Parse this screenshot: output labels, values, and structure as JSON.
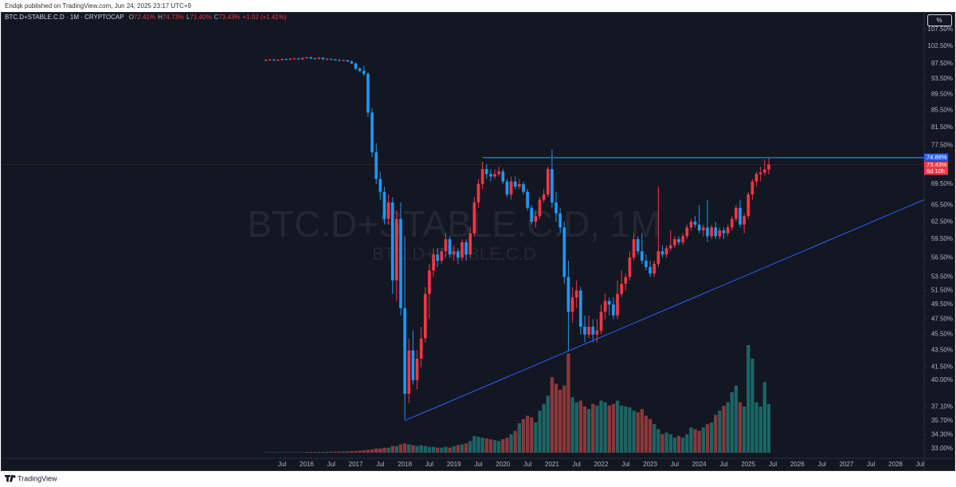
{
  "header": {
    "text": "Endqk published on TradingView.com, Jun 24, 2025 23:17 UTC+9"
  },
  "footer": {
    "brand": "TradingView"
  },
  "scale_button": "%",
  "chart_data": {
    "type": "candlestick",
    "symbol": "BTC.D+STABLE.C.D · 1M · CRYPTOCAP",
    "legend": [
      {
        "key": "O",
        "label": "72.41%"
      },
      {
        "key": "H",
        "label": "74.73%"
      },
      {
        "key": "L",
        "label": "71.40%"
      },
      {
        "key": "C",
        "label": "73.43%"
      }
    ],
    "change": "+1.02 (+1.41%)",
    "watermark": [
      "BTC.D+STABLE.C.D, 1M",
      "BTC.D+STABLE.C.D"
    ],
    "x": [
      "2015-03",
      "2015-04",
      "2015-05",
      "2015-06",
      "2015-07",
      "2015-08",
      "2015-09",
      "2015-10",
      "2015-11",
      "2015-12",
      "2016-01",
      "2016-02",
      "2016-03",
      "2016-04",
      "2016-05",
      "2016-06",
      "2016-07",
      "2016-08",
      "2016-09",
      "2016-10",
      "2016-11",
      "2016-12",
      "2017-01",
      "2017-02",
      "2017-03",
      "2017-04",
      "2017-05",
      "2017-06",
      "2017-07",
      "2017-08",
      "2017-09",
      "2017-10",
      "2017-11",
      "2017-12",
      "2018-01",
      "2018-02",
      "2018-03",
      "2018-04",
      "2018-05",
      "2018-06",
      "2018-07",
      "2018-08",
      "2018-09",
      "2018-10",
      "2018-11",
      "2018-12",
      "2019-01",
      "2019-02",
      "2019-03",
      "2019-04",
      "2019-05",
      "2019-06",
      "2019-07",
      "2019-08",
      "2019-09",
      "2019-10",
      "2019-11",
      "2019-12",
      "2020-01",
      "2020-02",
      "2020-03",
      "2020-04",
      "2020-05",
      "2020-06",
      "2020-07",
      "2020-08",
      "2020-09",
      "2020-10",
      "2020-11",
      "2020-12",
      "2021-01",
      "2021-02",
      "2021-03",
      "2021-04",
      "2021-05",
      "2021-06",
      "2021-07",
      "2021-08",
      "2021-09",
      "2021-10",
      "2021-11",
      "2021-12",
      "2022-01",
      "2022-02",
      "2022-03",
      "2022-04",
      "2022-05",
      "2022-06",
      "2022-07",
      "2022-08",
      "2022-09",
      "2022-10",
      "2022-11",
      "2022-12",
      "2023-01",
      "2023-02",
      "2023-03",
      "2023-04",
      "2023-05",
      "2023-06",
      "2023-07",
      "2023-08",
      "2023-09",
      "2023-10",
      "2023-11",
      "2023-12",
      "2024-01",
      "2024-02",
      "2024-03",
      "2024-04",
      "2024-05",
      "2024-06",
      "2024-07",
      "2024-08",
      "2024-09",
      "2024-10",
      "2024-11",
      "2024-12",
      "2025-01",
      "2025-02",
      "2025-03",
      "2025-04",
      "2025-05",
      "2025-06"
    ],
    "ohlc": [
      [
        98.4,
        98.8,
        98.2,
        98.6
      ],
      [
        98.6,
        98.9,
        98.4,
        98.7
      ],
      [
        98.7,
        98.9,
        98.3,
        98.5
      ],
      [
        98.5,
        98.8,
        98.3,
        98.6
      ],
      [
        98.6,
        99.0,
        98.4,
        98.8
      ],
      [
        98.8,
        99.0,
        98.5,
        98.7
      ],
      [
        98.7,
        99.1,
        98.5,
        98.9
      ],
      [
        98.9,
        99.2,
        98.7,
        99.0
      ],
      [
        99.0,
        99.2,
        98.6,
        98.8
      ],
      [
        98.8,
        99.3,
        98.6,
        99.1
      ],
      [
        99.1,
        99.5,
        98.9,
        99.3
      ],
      [
        99.3,
        99.5,
        98.8,
        99.0
      ],
      [
        99.0,
        99.2,
        98.7,
        98.9
      ],
      [
        98.9,
        99.4,
        98.7,
        99.2
      ],
      [
        99.2,
        99.3,
        98.6,
        98.8
      ],
      [
        98.8,
        99.1,
        98.5,
        98.9
      ],
      [
        98.9,
        99.0,
        98.5,
        98.7
      ],
      [
        98.7,
        98.9,
        98.4,
        98.6
      ],
      [
        98.6,
        98.8,
        98.2,
        98.4
      ],
      [
        98.4,
        98.7,
        98.2,
        98.5
      ],
      [
        98.5,
        98.6,
        98.0,
        98.2
      ],
      [
        98.2,
        98.4,
        97.4,
        97.6
      ],
      [
        97.6,
        97.9,
        95.8,
        96.2
      ],
      [
        96.2,
        96.6,
        95.2,
        95.6
      ],
      [
        95.6,
        97.0,
        94.2,
        94.8
      ],
      [
        94.8,
        95.2,
        84.0,
        85.0
      ],
      [
        85.0,
        86.0,
        75.0,
        76.0
      ],
      [
        76.0,
        78.0,
        69.5,
        70.5
      ],
      [
        70.5,
        72.0,
        66.5,
        68.0
      ],
      [
        68.0,
        69.0,
        62.0,
        63.0
      ],
      [
        63.0,
        67.5,
        62.0,
        66.0
      ],
      [
        66.0,
        67.0,
        51.0,
        53.0
      ],
      [
        53.0,
        64.5,
        50.0,
        63.0
      ],
      [
        63.0,
        66.0,
        48.0,
        49.0
      ],
      [
        49.0,
        60.0,
        35.8,
        38.5
      ],
      [
        38.5,
        45.0,
        37.5,
        43.5
      ],
      [
        43.5,
        46.0,
        39.5,
        40.0
      ],
      [
        40.0,
        43.5,
        39.0,
        42.5
      ],
      [
        42.5,
        46.5,
        41.5,
        45.0
      ],
      [
        45.0,
        52.0,
        44.5,
        51.0
      ],
      [
        51.0,
        55.5,
        47.5,
        54.5
      ],
      [
        54.5,
        58.0,
        53.5,
        57.0
      ],
      [
        57.0,
        58.0,
        55.0,
        56.0
      ],
      [
        56.0,
        58.0,
        55.5,
        57.5
      ],
      [
        57.5,
        60.5,
        56.5,
        59.5
      ],
      [
        59.5,
        60.0,
        56.5,
        57.0
      ],
      [
        57.0,
        58.5,
        56.0,
        57.5
      ],
      [
        57.5,
        58.0,
        55.5,
        56.5
      ],
      [
        56.5,
        59.5,
        56.0,
        59.0
      ],
      [
        59.0,
        59.5,
        56.0,
        57.0
      ],
      [
        57.0,
        61.5,
        56.5,
        60.5
      ],
      [
        60.5,
        67.0,
        60.0,
        66.0
      ],
      [
        66.0,
        70.5,
        65.0,
        69.5
      ],
      [
        69.5,
        74.0,
        68.5,
        72.5
      ],
      [
        72.5,
        73.5,
        70.5,
        71.5
      ],
      [
        71.5,
        72.5,
        70.0,
        71.0
      ],
      [
        71.0,
        72.5,
        70.5,
        71.5
      ],
      [
        71.5,
        73.0,
        71.0,
        72.0
      ],
      [
        72.0,
        72.5,
        69.5,
        70.0
      ],
      [
        70.0,
        70.5,
        67.0,
        67.5
      ],
      [
        67.5,
        71.0,
        66.5,
        70.0
      ],
      [
        70.0,
        71.0,
        68.5,
        69.0
      ],
      [
        69.0,
        70.5,
        68.5,
        69.5
      ],
      [
        69.5,
        70.0,
        67.5,
        68.0
      ],
      [
        68.0,
        68.5,
        64.5,
        65.0
      ],
      [
        65.0,
        65.5,
        62.0,
        62.5
      ],
      [
        62.5,
        64.5,
        61.5,
        63.5
      ],
      [
        63.5,
        67.0,
        63.0,
        66.5
      ],
      [
        66.5,
        68.5,
        66.0,
        67.5
      ],
      [
        67.5,
        73.0,
        67.0,
        72.5
      ],
      [
        72.5,
        76.5,
        65.0,
        66.0
      ],
      [
        66.0,
        68.0,
        62.5,
        64.0
      ],
      [
        64.0,
        65.0,
        60.5,
        61.5
      ],
      [
        61.5,
        62.5,
        52.5,
        53.5
      ],
      [
        53.5,
        56.0,
        43.5,
        48.5
      ],
      [
        48.5,
        52.0,
        47.0,
        50.5
      ],
      [
        50.5,
        53.0,
        49.0,
        51.5
      ],
      [
        51.5,
        52.0,
        45.5,
        46.5
      ],
      [
        46.5,
        48.0,
        44.5,
        45.5
      ],
      [
        45.5,
        48.0,
        45.0,
        46.5
      ],
      [
        46.5,
        47.5,
        44.5,
        45.5
      ],
      [
        45.5,
        47.5,
        44.5,
        46.0
      ],
      [
        46.0,
        49.5,
        45.5,
        48.5
      ],
      [
        48.5,
        51.0,
        47.5,
        50.0
      ],
      [
        50.0,
        50.5,
        48.0,
        49.5
      ],
      [
        49.5,
        50.5,
        47.5,
        48.0
      ],
      [
        48.0,
        53.0,
        47.5,
        51.0
      ],
      [
        51.0,
        54.5,
        50.5,
        52.5
      ],
      [
        52.5,
        54.0,
        51.5,
        53.5
      ],
      [
        53.5,
        57.5,
        53.0,
        56.5
      ],
      [
        56.5,
        60.5,
        56.0,
        59.5
      ],
      [
        59.5,
        60.0,
        57.0,
        57.5
      ],
      [
        57.5,
        60.5,
        55.5,
        56.0
      ],
      [
        56.0,
        57.0,
        54.5,
        55.0
      ],
      [
        55.0,
        56.0,
        53.5,
        54.0
      ],
      [
        54.0,
        56.0,
        53.5,
        55.5
      ],
      [
        55.5,
        69.0,
        55.0,
        57.5
      ],
      [
        57.5,
        58.5,
        56.5,
        57.0
      ],
      [
        57.0,
        58.5,
        56.5,
        58.0
      ],
      [
        58.0,
        61.0,
        57.5,
        58.5
      ],
      [
        58.5,
        60.0,
        58.0,
        59.5
      ],
      [
        59.5,
        60.0,
        58.5,
        59.0
      ],
      [
        59.0,
        60.5,
        58.5,
        60.0
      ],
      [
        60.0,
        62.0,
        59.5,
        61.5
      ],
      [
        61.5,
        63.0,
        61.0,
        62.5
      ],
      [
        62.5,
        63.5,
        61.5,
        62.0
      ],
      [
        62.0,
        65.5,
        60.5,
        61.0
      ],
      [
        61.0,
        62.0,
        60.0,
        61.5
      ],
      [
        61.5,
        66.5,
        59.0,
        60.0
      ],
      [
        60.0,
        62.0,
        59.5,
        61.5
      ],
      [
        61.5,
        62.5,
        59.5,
        60.0
      ],
      [
        60.0,
        61.5,
        59.5,
        61.0
      ],
      [
        61.0,
        61.5,
        59.5,
        60.5
      ],
      [
        60.5,
        62.0,
        60.0,
        61.5
      ],
      [
        61.5,
        63.5,
        61.0,
        63.0
      ],
      [
        63.0,
        65.5,
        62.5,
        65.0
      ],
      [
        65.0,
        66.5,
        61.5,
        62.0
      ],
      [
        62.0,
        64.0,
        60.5,
        63.5
      ],
      [
        63.5,
        68.0,
        63.0,
        67.5
      ],
      [
        67.5,
        70.5,
        66.5,
        70.0
      ],
      [
        70.0,
        72.0,
        69.0,
        71.5
      ],
      [
        71.5,
        73.0,
        70.0,
        71.8
      ],
      [
        71.8,
        74.5,
        71.2,
        72.41
      ],
      [
        72.41,
        74.73,
        71.4,
        73.43
      ]
    ],
    "volume": [
      0.5,
      0.5,
      0.5,
      0.5,
      0.5,
      0.5,
      0.5,
      0.5,
      0.5,
      0.5,
      0.8,
      0.8,
      0.9,
      1,
      1,
      1.2,
      1.2,
      1.3,
      1.3,
      1.5,
      1.5,
      2,
      2,
      2.5,
      3,
      3.5,
      4,
      5,
      5,
      6,
      6,
      8,
      8,
      10,
      11,
      10,
      9,
      8,
      9,
      8,
      7,
      7,
      6,
      6,
      7,
      6,
      8,
      9,
      10,
      11,
      14,
      20,
      19,
      18,
      17,
      16,
      15,
      14,
      16,
      18,
      22,
      26,
      35,
      40,
      44,
      42,
      36,
      50,
      58,
      68,
      90,
      82,
      75,
      80,
      118,
      66,
      60,
      62,
      55,
      52,
      58,
      56,
      62,
      60,
      56,
      58,
      62,
      56,
      55,
      54,
      50,
      48,
      52,
      44,
      40,
      34,
      28,
      22,
      24,
      22,
      18,
      20,
      18,
      22,
      30,
      28,
      26,
      30,
      34,
      36,
      45,
      50,
      56,
      60,
      72,
      80,
      60,
      55,
      128,
      112,
      60,
      55,
      84,
      58
    ],
    "colors": {
      "up": "#f23645",
      "down": "#2196f3",
      "volume_up": "#26a69a",
      "volume_down": "#ef5350",
      "lines": "#2962ff"
    },
    "log_scale": true,
    "grid": false,
    "ylim": [
      32.1,
      112.6
    ],
    "yticks": [
      {
        "value": 107.5,
        "label": "107.50%"
      },
      {
        "value": 102.5,
        "label": "102.50%"
      },
      {
        "value": 97.5,
        "label": "97.50%"
      },
      {
        "value": 93.5,
        "label": "93.50%"
      },
      {
        "value": 89.5,
        "label": "89.50%"
      },
      {
        "value": 85.5,
        "label": "85.50%"
      },
      {
        "value": 81.5,
        "label": "81.50%"
      },
      {
        "value": 77.5,
        "label": "77.50%"
      },
      {
        "value": 69.5,
        "label": "69.50%"
      },
      {
        "value": 65.5,
        "label": "65.50%"
      },
      {
        "value": 62.5,
        "label": "62.50%"
      },
      {
        "value": 59.5,
        "label": "59.50%"
      },
      {
        "value": 56.5,
        "label": "56.50%"
      },
      {
        "value": 53.5,
        "label": "53.50%"
      },
      {
        "value": 51.5,
        "label": "51.50%"
      },
      {
        "value": 49.5,
        "label": "49.50%"
      },
      {
        "value": 47.5,
        "label": "47.50%"
      },
      {
        "value": 45.5,
        "label": "45.50%"
      },
      {
        "value": 43.5,
        "label": "43.50%"
      },
      {
        "value": 41.5,
        "label": "41.50%"
      },
      {
        "value": 40,
        "label": "40.00%"
      },
      {
        "value": 37.1,
        "label": "37.10%"
      },
      {
        "value": 35.7,
        "label": "35.70%"
      },
      {
        "value": 34.3,
        "label": "34.30%"
      },
      {
        "value": 33,
        "label": "33.00%"
      }
    ],
    "xlim": [
      "2009-10",
      "2028-08"
    ],
    "xticks": [
      {
        "value": "2015-07",
        "label": "Jul"
      },
      {
        "value": "2016-01",
        "label": "2016"
      },
      {
        "value": "2016-07",
        "label": "Jul"
      },
      {
        "value": "2017-01",
        "label": "2017"
      },
      {
        "value": "2017-07",
        "label": "Jul"
      },
      {
        "value": "2018-01",
        "label": "2018"
      },
      {
        "value": "2018-07",
        "label": "Jul"
      },
      {
        "value": "2019-01",
        "label": "2019"
      },
      {
        "value": "2019-07",
        "label": "Jul"
      },
      {
        "value": "2020-01",
        "label": "2020"
      },
      {
        "value": "2020-07",
        "label": "Jul"
      },
      {
        "value": "2021-01",
        "label": "2021"
      },
      {
        "value": "2021-07",
        "label": "Jul"
      },
      {
        "value": "2022-01",
        "label": "2022"
      },
      {
        "value": "2022-07",
        "label": "Jul"
      },
      {
        "value": "2023-01",
        "label": "2023"
      },
      {
        "value": "2023-07",
        "label": "Jul"
      },
      {
        "value": "2024-01",
        "label": "2024"
      },
      {
        "value": "2024-07",
        "label": "Jul"
      },
      {
        "value": "2025-01",
        "label": "2025"
      },
      {
        "value": "2025-07",
        "label": "Jul"
      },
      {
        "value": "2026-01",
        "label": "2026"
      },
      {
        "value": "2026-07",
        "label": "Jul"
      },
      {
        "value": "2027-01",
        "label": "2027"
      },
      {
        "value": "2027-07",
        "label": "Jul"
      },
      {
        "value": "2028-01",
        "label": "2028"
      },
      {
        "value": "2028-07",
        "label": "Jul"
      }
    ],
    "resistance": {
      "from": "2019-08",
      "value": 74.88,
      "label": "74.88%"
    },
    "trend_line": {
      "from": [
        "2018-01",
        35.7
      ],
      "to": [
        "2028-08",
        66.5
      ]
    },
    "last_price_label": "73.43%",
    "countdown": "6d 10h"
  }
}
